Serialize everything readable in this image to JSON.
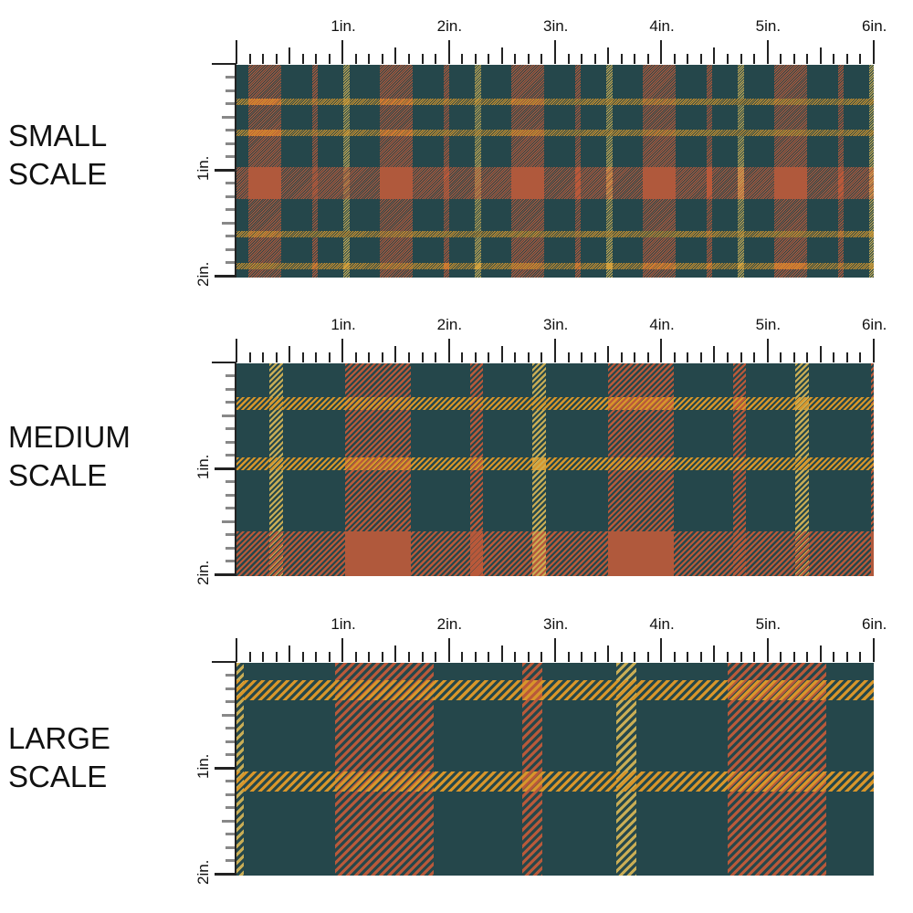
{
  "panels": [
    {
      "id": "small",
      "label": "SMALL\nSCALE"
    },
    {
      "id": "medium",
      "label": "MEDIUM\nSCALE"
    },
    {
      "id": "large",
      "label": "LARGE\nSCALE"
    }
  ],
  "ruler": {
    "horizontal_labels": [
      "1in.",
      "2in.",
      "3in.",
      "4in.",
      "5in.",
      "6in."
    ],
    "vertical_labels": [
      "1in.",
      "2in."
    ]
  },
  "colors": {
    "background_teal": "#25474b",
    "stripe_red": "#b9593a",
    "stripe_gold": "#d8962a",
    "stripe_pale_gold": "#c9ad55",
    "block_orange": "#b0593c"
  }
}
